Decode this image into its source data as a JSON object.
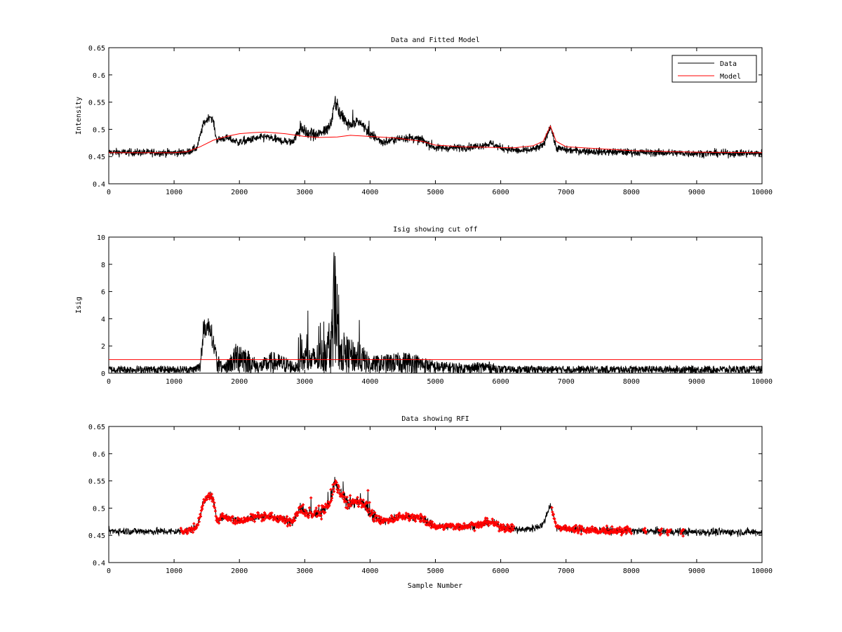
{
  "figure": {
    "xlabel": "Sample Number"
  },
  "chart_data": [
    {
      "type": "line",
      "title": "Data and Fitted Model",
      "xlabel": "",
      "ylabel": "Intensity",
      "xlim": [
        0,
        10000
      ],
      "ylim": [
        0.4,
        0.65
      ],
      "xticks": [
        0,
        1000,
        2000,
        3000,
        4000,
        5000,
        6000,
        7000,
        8000,
        9000,
        10000
      ],
      "yticks": [
        0.4,
        0.45,
        0.5,
        0.55,
        0.6,
        0.65
      ],
      "ytick_labels": [
        "0.4",
        "0.45",
        "0.5",
        "0.55",
        "0.6",
        "0.65"
      ],
      "legend": {
        "placement": "top-right",
        "entries": [
          "Data",
          "Model"
        ]
      },
      "grid": false,
      "series": [
        {
          "name": "Data",
          "color": "#000000",
          "style": "noisy-line",
          "x": [
            0,
            1000,
            1200,
            1350,
            1450,
            1550,
            1600,
            1650,
            1700,
            1800,
            2000,
            2200,
            2400,
            2600,
            2800,
            2950,
            3050,
            3200,
            3300,
            3400,
            3460,
            3550,
            3700,
            3800,
            3900,
            4000,
            4200,
            4400,
            4600,
            4800,
            5000,
            5300,
            5600,
            5850,
            6000,
            6300,
            6500,
            6650,
            6760,
            6850,
            7000,
            7500,
            8000,
            9000,
            10000
          ],
          "y": [
            0.458,
            0.457,
            0.458,
            0.466,
            0.51,
            0.525,
            0.515,
            0.48,
            0.482,
            0.484,
            0.476,
            0.482,
            0.486,
            0.48,
            0.476,
            0.503,
            0.49,
            0.49,
            0.498,
            0.51,
            0.55,
            0.525,
            0.508,
            0.512,
            0.508,
            0.49,
            0.476,
            0.482,
            0.485,
            0.48,
            0.466,
            0.466,
            0.468,
            0.474,
            0.466,
            0.46,
            0.463,
            0.47,
            0.507,
            0.466,
            0.462,
            0.459,
            0.458,
            0.456,
            0.456
          ]
        },
        {
          "name": "Model",
          "color": "#ff0000",
          "style": "line",
          "x": [
            0,
            1000,
            1200,
            1400,
            1600,
            1800,
            2000,
            2200,
            2400,
            2700,
            3000,
            3200,
            3500,
            3700,
            4000,
            4400,
            4800,
            5000,
            5400,
            5800,
            6200,
            6500,
            6650,
            6760,
            6850,
            7000,
            8000,
            9000,
            10000
          ],
          "y": [
            0.457,
            0.457,
            0.459,
            0.468,
            0.48,
            0.487,
            0.492,
            0.494,
            0.495,
            0.492,
            0.487,
            0.485,
            0.486,
            0.489,
            0.487,
            0.484,
            0.478,
            0.471,
            0.468,
            0.467,
            0.466,
            0.47,
            0.478,
            0.506,
            0.478,
            0.468,
            0.461,
            0.458,
            0.457
          ]
        }
      ]
    },
    {
      "type": "line",
      "title": "Isig showing cut off",
      "xlabel": "",
      "ylabel": "Isig",
      "xlim": [
        0,
        10000
      ],
      "ylim": [
        0,
        10
      ],
      "xticks": [
        0,
        1000,
        2000,
        3000,
        4000,
        5000,
        6000,
        7000,
        8000,
        9000,
        10000
      ],
      "yticks": [
        0,
        2,
        4,
        6,
        8,
        10
      ],
      "ytick_labels": [
        "0",
        "2",
        "4",
        "6",
        "8",
        "10"
      ],
      "grid": false,
      "series": [
        {
          "name": "Isig",
          "color": "#000000",
          "style": "noisy-spiky",
          "x": [
            0,
            1300,
            1400,
            1450,
            1550,
            1650,
            1750,
            1900,
            2000,
            2150,
            2300,
            2500,
            2700,
            2900,
            3000,
            3100,
            3250,
            3350,
            3450,
            3550,
            3700,
            3900,
            4000,
            4300,
            4600,
            5000,
            5500,
            5800,
            6000,
            7000,
            8000,
            9000,
            10000
          ],
          "y": [
            0.3,
            0.3,
            0.5,
            3.2,
            3.5,
            1.0,
            0.3,
            1.0,
            1.5,
            0.9,
            0.5,
            0.9,
            0.7,
            0.4,
            1.2,
            1.0,
            1.4,
            1.8,
            3.5,
            1.8,
            1.4,
            1.1,
            0.7,
            0.8,
            0.9,
            0.5,
            0.4,
            0.5,
            0.3,
            0.3,
            0.3,
            0.3,
            0.3
          ]
        },
        {
          "name": "Cut off",
          "color": "#ff0000",
          "style": "line",
          "x": [
            0,
            10000
          ],
          "y": [
            1,
            1
          ]
        }
      ]
    },
    {
      "type": "scatter",
      "title": "Data showing RFI",
      "xlabel": "Sample Number",
      "ylabel": "",
      "xlim": [
        0,
        10000
      ],
      "ylim": [
        0.4,
        0.65
      ],
      "xticks": [
        0,
        1000,
        2000,
        3000,
        4000,
        5000,
        6000,
        7000,
        8000,
        9000,
        10000
      ],
      "yticks": [
        0.4,
        0.45,
        0.5,
        0.55,
        0.6,
        0.65
      ],
      "ytick_labels": [
        "0.4",
        "0.45",
        "0.5",
        "0.55",
        "0.6",
        "0.65"
      ],
      "grid": false,
      "series": [
        {
          "name": "Data",
          "color": "#000000",
          "style": "noisy-line",
          "x": [
            0,
            1000,
            1200,
            1350,
            1450,
            1550,
            1600,
            1650,
            1700,
            1800,
            2000,
            2200,
            2400,
            2600,
            2800,
            2950,
            3050,
            3200,
            3300,
            3400,
            3460,
            3550,
            3700,
            3800,
            3900,
            4000,
            4200,
            4400,
            4600,
            4800,
            5000,
            5300,
            5600,
            5850,
            6000,
            6300,
            6500,
            6650,
            6760,
            6850,
            7000,
            7500,
            8000,
            9000,
            10000
          ],
          "y": [
            0.458,
            0.457,
            0.458,
            0.466,
            0.51,
            0.525,
            0.515,
            0.48,
            0.482,
            0.484,
            0.476,
            0.482,
            0.486,
            0.48,
            0.476,
            0.503,
            0.49,
            0.49,
            0.498,
            0.51,
            0.55,
            0.525,
            0.508,
            0.512,
            0.508,
            0.49,
            0.476,
            0.482,
            0.485,
            0.48,
            0.466,
            0.466,
            0.468,
            0.474,
            0.466,
            0.46,
            0.463,
            0.47,
            0.507,
            0.466,
            0.462,
            0.459,
            0.458,
            0.456,
            0.456
          ]
        },
        {
          "name": "RFI",
          "color": "#ff0000",
          "style": "markers",
          "ranges": [
            [
              1100,
              6200
            ],
            [
              6780,
              8000
            ],
            [
              8180,
              8230
            ],
            [
              8420,
              8470
            ],
            [
              8540,
              8600
            ],
            [
              8760,
              8800
            ]
          ]
        }
      ]
    }
  ]
}
